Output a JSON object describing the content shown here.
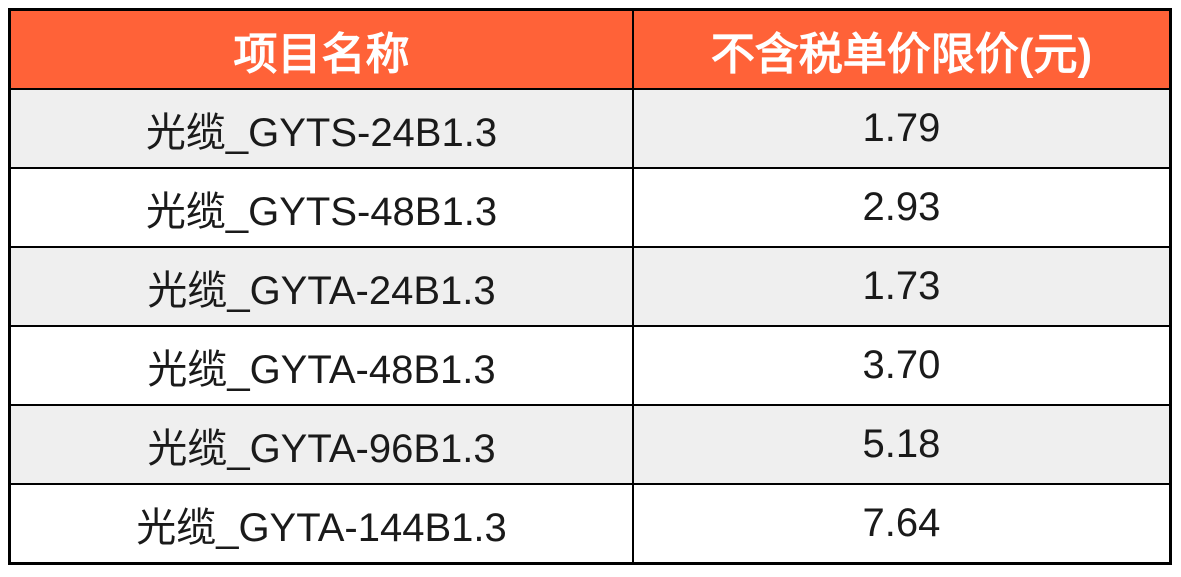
{
  "table": {
    "columns": [
      {
        "key": "name",
        "label": "项目名称"
      },
      {
        "key": "price",
        "label": "不含税单价限价(元)"
      }
    ],
    "rows": [
      {
        "name": "光缆_GYTS-24B1.3",
        "price": "1.79"
      },
      {
        "name": "光缆_GYTS-48B1.3",
        "price": "2.93"
      },
      {
        "name": "光缆_GYTA-24B1.3",
        "price": "1.73"
      },
      {
        "name": "光缆_GYTA-48B1.3",
        "price": "3.70"
      },
      {
        "name": "光缆_GYTA-96B1.3",
        "price": "5.18"
      },
      {
        "name": "光缆_GYTA-144B1.3",
        "price": "7.64"
      }
    ]
  },
  "colors": {
    "header_bg": "#ff6238",
    "header_text": "#ffffff",
    "row_alt_bg": "#efefef",
    "row_bg": "#ffffff",
    "body_text": "#1a1a1a",
    "border": "#000000"
  }
}
